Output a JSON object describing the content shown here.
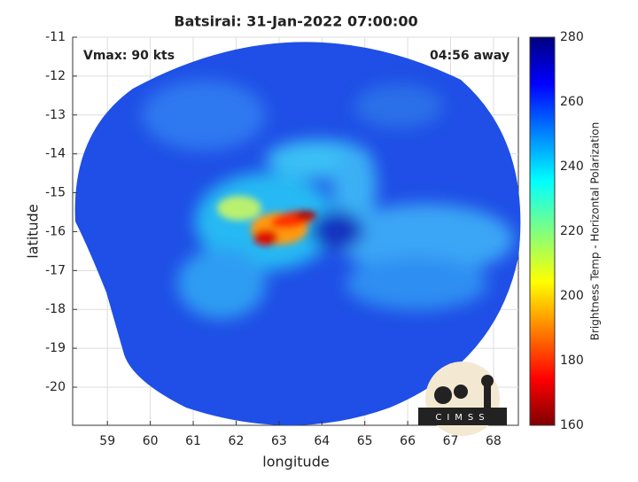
{
  "chart_data": {
    "type": "image",
    "title": "Batsirai: 31-Jan-2022 07:00:00",
    "annotations": [
      "Vmax: 90 kts",
      "04:56 away"
    ],
    "x_label": "longitude",
    "y_label": "latitude",
    "xlim": [
      58.19,
      68.58
    ],
    "xticks": [
      59,
      60,
      61,
      62,
      63,
      64,
      65,
      66,
      67,
      68
    ],
    "ylim": [
      -20.98,
      -11
    ],
    "yticks": [
      -11,
      -12,
      -13,
      -14,
      -15,
      -16,
      -17,
      -18,
      -19,
      -20
    ],
    "grid": true,
    "colorbar": {
      "label": "Brightness Temp - Horizontal Polarization",
      "lim": [
        160,
        280
      ],
      "ticks": [
        160,
        180,
        200,
        220,
        240,
        260,
        280
      ]
    },
    "logo": "CIMSS"
  }
}
